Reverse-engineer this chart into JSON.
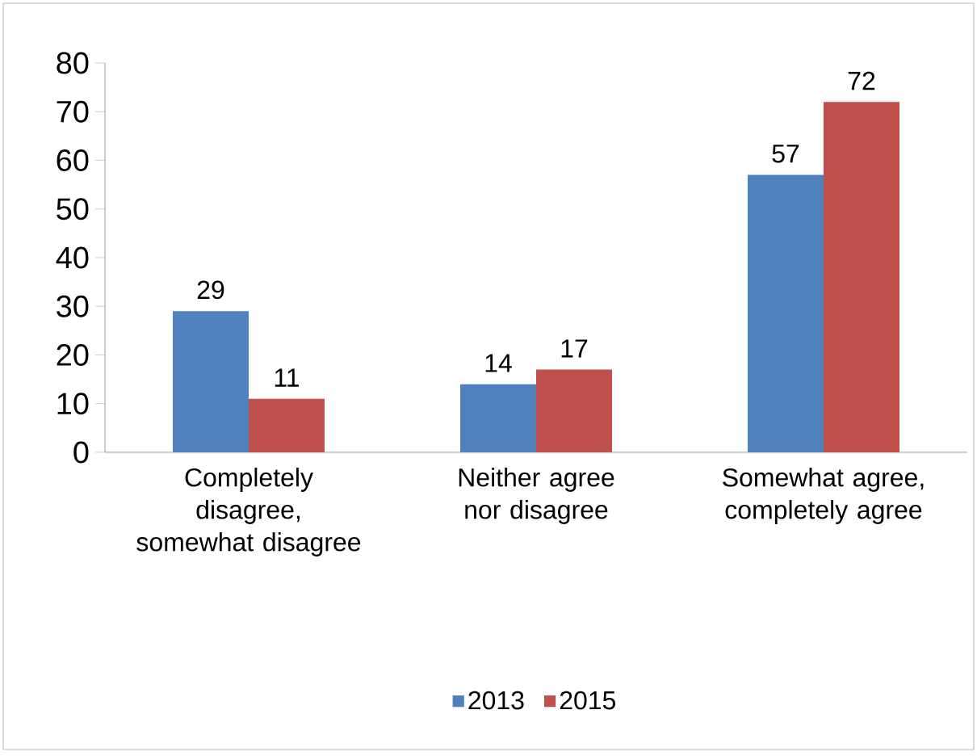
{
  "chart_data": {
    "type": "bar",
    "categories": [
      "Completely disagree, somewhat disagree",
      "Neither agree nor disagree",
      "Somewhat agree, completely agree"
    ],
    "series": [
      {
        "name": "2013",
        "color": "#4f81bd",
        "values": [
          29,
          14,
          57
        ]
      },
      {
        "name": "2015",
        "color": "#c0504d",
        "values": [
          11,
          17,
          72
        ]
      }
    ],
    "ylim": [
      0,
      80
    ],
    "yticks": [
      0,
      10,
      20,
      30,
      40,
      50,
      60,
      70,
      80
    ],
    "data_labels": true,
    "legend": "bottom"
  }
}
